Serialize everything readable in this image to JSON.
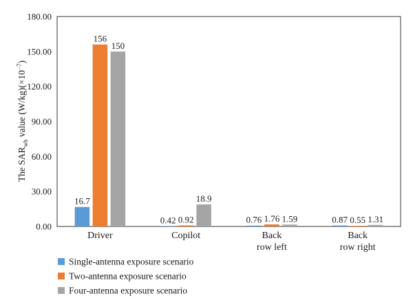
{
  "chart_data": {
    "type": "bar",
    "categories": [
      [
        "Driver"
      ],
      [
        "Copilot"
      ],
      [
        "Back",
        "row left"
      ],
      [
        "Back",
        "row right"
      ]
    ],
    "series": [
      {
        "name": "Single-antenna exposure scenario",
        "color": "#5b9bd5",
        "values": [
          16.7,
          0.42,
          0.76,
          0.87
        ],
        "labels": [
          "16.7",
          "0.42",
          "0.76",
          "0.87"
        ]
      },
      {
        "name": "Two-antenna exposure scenario",
        "color": "#ed7d31",
        "values": [
          156,
          0.92,
          1.76,
          0.55
        ],
        "labels": [
          "156",
          "0.92",
          "1.76",
          "0.55"
        ]
      },
      {
        "name": "Four-antenna exposure scenario",
        "color": "#a5a5a5",
        "values": [
          150,
          18.9,
          1.59,
          1.31
        ],
        "labels": [
          "150",
          "18.9",
          "1.59",
          "1.31"
        ]
      }
    ],
    "ylim": [
      0,
      180
    ],
    "yticks": [
      "0.00",
      "30.00",
      "60.00",
      "90.00",
      "120.00",
      "150.00",
      "180.00"
    ],
    "ylabel": {
      "main": "The SAR",
      "sub": "wb",
      "rest": " value (W/kg)(×10",
      "sup": "−7",
      "end": ")"
    },
    "grid": false,
    "legend_position": "bottom-left"
  }
}
